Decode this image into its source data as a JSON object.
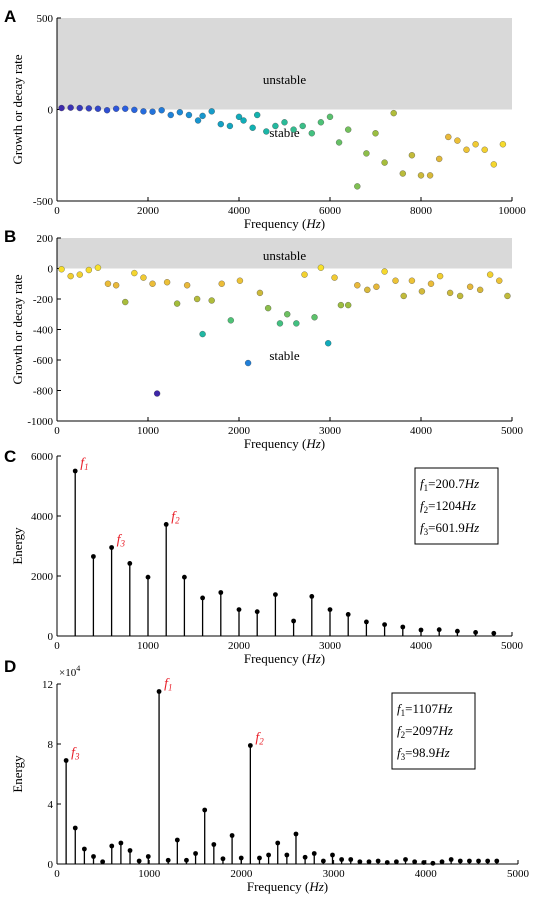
{
  "panels": [
    {
      "letter": "A",
      "chart_data": {
        "type": "scatter",
        "title": "",
        "xlabel": "Frequency",
        "xlabel_unit": "Hz",
        "ylabel": "Growth or decay rate",
        "xlim": [
          0,
          10000
        ],
        "ylim": [
          -500,
          500
        ],
        "xticks": [
          0,
          2000,
          4000,
          6000,
          8000,
          10000
        ],
        "yticks": [
          -500,
          0,
          500
        ],
        "xtick_labels": [
          "0",
          "2000",
          "4000",
          "6000",
          "8000",
          "10000"
        ],
        "ytick_labels": [
          "-500",
          "0",
          "500"
        ],
        "unstable_region": [
          0,
          500
        ],
        "region_labels": [
          "unstable",
          "stable"
        ],
        "grid": false,
        "points": [
          [
            100,
            8
          ],
          [
            300,
            10
          ],
          [
            500,
            8
          ],
          [
            700,
            6
          ],
          [
            900,
            4
          ],
          [
            1100,
            -4
          ],
          [
            1300,
            4
          ],
          [
            1500,
            4
          ],
          [
            1700,
            -2
          ],
          [
            1900,
            -10
          ],
          [
            2100,
            -12
          ],
          [
            2300,
            -4
          ],
          [
            2500,
            -30
          ],
          [
            2700,
            -15
          ],
          [
            2900,
            -30
          ],
          [
            3100,
            -60
          ],
          [
            3200,
            -35
          ],
          [
            3400,
            -10
          ],
          [
            3600,
            -80
          ],
          [
            3800,
            -90
          ],
          [
            4000,
            -40
          ],
          [
            4100,
            -60
          ],
          [
            4300,
            -100
          ],
          [
            4400,
            -30
          ],
          [
            4600,
            -120
          ],
          [
            4800,
            -90
          ],
          [
            5000,
            -70
          ],
          [
            5200,
            -110
          ],
          [
            5400,
            -90
          ],
          [
            5600,
            -130
          ],
          [
            5800,
            -70
          ],
          [
            6000,
            -40
          ],
          [
            6200,
            -180
          ],
          [
            6400,
            -110
          ],
          [
            6600,
            -420
          ],
          [
            6800,
            -240
          ],
          [
            7000,
            -130
          ],
          [
            7200,
            -290
          ],
          [
            7400,
            -20
          ],
          [
            7600,
            -350
          ],
          [
            7800,
            -250
          ],
          [
            8000,
            -360
          ],
          [
            8200,
            -360
          ],
          [
            8400,
            -270
          ],
          [
            8600,
            -150
          ],
          [
            8800,
            -170
          ],
          [
            9000,
            -220
          ],
          [
            9200,
            -190
          ],
          [
            9400,
            -220
          ],
          [
            9600,
            -300
          ],
          [
            9800,
            -190
          ]
        ]
      }
    },
    {
      "letter": "B",
      "chart_data": {
        "type": "scatter",
        "title": "",
        "xlabel": "Frequency",
        "xlabel_unit": "Hz",
        "ylabel": "Growth or decay rate",
        "xlim": [
          0,
          5000
        ],
        "ylim": [
          -1000,
          200
        ],
        "xticks": [
          0,
          1000,
          2000,
          3000,
          4000,
          5000
        ],
        "yticks": [
          -1000,
          -800,
          -600,
          -400,
          -200,
          0,
          200
        ],
        "xtick_labels": [
          "0",
          "1000",
          "2000",
          "3000",
          "4000",
          "5000"
        ],
        "ytick_labels": [
          "-1000",
          "-800",
          "-600",
          "-400",
          "-200",
          "0",
          "200"
        ],
        "unstable_region": [
          0,
          200
        ],
        "region_labels": [
          "unstable",
          "stable"
        ],
        "grid": false,
        "points": [
          [
            50,
            -5
          ],
          [
            150,
            -50
          ],
          [
            250,
            -40
          ],
          [
            350,
            -10
          ],
          [
            450,
            5
          ],
          [
            560,
            -100
          ],
          [
            650,
            -110
          ],
          [
            750,
            -220
          ],
          [
            850,
            -30
          ],
          [
            950,
            -60
          ],
          [
            1050,
            -100
          ],
          [
            1100,
            -820
          ],
          [
            1210,
            -90
          ],
          [
            1320,
            -230
          ],
          [
            1430,
            -110
          ],
          [
            1540,
            -200
          ],
          [
            1600,
            -430
          ],
          [
            1700,
            -210
          ],
          [
            1810,
            -100
          ],
          [
            1910,
            -340
          ],
          [
            2010,
            -80
          ],
          [
            2100,
            -620
          ],
          [
            2230,
            -160
          ],
          [
            2320,
            -260
          ],
          [
            2450,
            -360
          ],
          [
            2530,
            -300
          ],
          [
            2630,
            -360
          ],
          [
            2720,
            -40
          ],
          [
            2830,
            -320
          ],
          [
            2900,
            5
          ],
          [
            2980,
            -490
          ],
          [
            3050,
            -60
          ],
          [
            3120,
            -240
          ],
          [
            3200,
            -240
          ],
          [
            3300,
            -110
          ],
          [
            3410,
            -140
          ],
          [
            3510,
            -120
          ],
          [
            3600,
            -20
          ],
          [
            3720,
            -80
          ],
          [
            3810,
            -180
          ],
          [
            3900,
            -80
          ],
          [
            4010,
            -150
          ],
          [
            4110,
            -100
          ],
          [
            4210,
            -50
          ],
          [
            4320,
            -160
          ],
          [
            4430,
            -180
          ],
          [
            4540,
            -120
          ],
          [
            4650,
            -140
          ],
          [
            4760,
            -40
          ],
          [
            4860,
            -80
          ],
          [
            4950,
            -180
          ]
        ]
      }
    },
    {
      "letter": "C",
      "chart_data": {
        "type": "bar",
        "title": "",
        "xlabel": "Frequency",
        "xlabel_unit": "Hz",
        "ylabel": "Energy",
        "xlim": [
          0,
          5000
        ],
        "ylim": [
          0,
          6000
        ],
        "xticks": [
          0,
          1000,
          2000,
          3000,
          4000,
          5000
        ],
        "yticks": [
          0,
          2000,
          4000,
          6000
        ],
        "xtick_labels": [
          "0",
          "1000",
          "2000",
          "3000",
          "4000",
          "5000"
        ],
        "ytick_labels": [
          "0",
          "2000",
          "4000",
          "6000"
        ],
        "grid": false,
        "x": [
          200,
          400,
          600,
          800,
          1000,
          1200,
          1400,
          1600,
          1800,
          2000,
          2200,
          2400,
          2600,
          2800,
          3000,
          3200,
          3400,
          3600,
          3800,
          4000,
          4200,
          4400,
          4600,
          4800
        ],
        "values": [
          5500,
          2650,
          2950,
          2420,
          1960,
          3720,
          1960,
          1270,
          1450,
          880,
          810,
          1380,
          500,
          1320,
          880,
          720,
          470,
          380,
          300,
          200,
          210,
          160,
          120,
          90
        ],
        "peak_labels": [
          {
            "name": "f",
            "sub": "1",
            "x": 200,
            "y": 5500
          },
          {
            "name": "f",
            "sub": "3",
            "x": 600,
            "y": 2950
          },
          {
            "name": "f",
            "sub": "2",
            "x": 1200,
            "y": 3720
          }
        ],
        "legend_box": [
          {
            "name": "f",
            "sub": "1",
            "value": "=200.7",
            "unit": "Hz"
          },
          {
            "name": "f",
            "sub": "2",
            "value": "=1204",
            "unit": "Hz"
          },
          {
            "name": "f",
            "sub": "3",
            "value": "=601.9",
            "unit": "Hz"
          }
        ]
      }
    },
    {
      "letter": "D",
      "chart_data": {
        "type": "bar",
        "title": "",
        "xlabel": "Frequency",
        "xlabel_unit": "Hz",
        "ylabel": "Energy",
        "y_exponent_base": "×10",
        "y_exponent_power": "4",
        "xlim": [
          0,
          5000
        ],
        "ylim": [
          0,
          12
        ],
        "xticks": [
          0,
          1000,
          2000,
          3000,
          4000,
          5000
        ],
        "yticks": [
          0,
          4,
          8,
          12
        ],
        "xtick_labels": [
          "0",
          "1000",
          "2000",
          "3000",
          "4000",
          "5000"
        ],
        "ytick_labels": [
          "0",
          "4",
          "8",
          "12"
        ],
        "grid": false,
        "x": [
          99,
          198,
          297,
          396,
          495,
          594,
          693,
          792,
          891,
          990,
          1107,
          1206,
          1305,
          1404,
          1503,
          1602,
          1701,
          1800,
          1899,
          1998,
          2097,
          2196,
          2295,
          2394,
          2493,
          2592,
          2691,
          2790,
          2889,
          2988,
          3087,
          3186,
          3285,
          3384,
          3483,
          3582,
          3681,
          3780,
          3879,
          3978,
          4077,
          4176,
          4275,
          4374,
          4473,
          4572,
          4671,
          4770
        ],
        "values": [
          6.9,
          2.4,
          1.0,
          0.5,
          0.15,
          1.2,
          1.4,
          0.9,
          0.2,
          0.5,
          11.5,
          0.25,
          1.6,
          0.25,
          0.7,
          3.6,
          1.3,
          0.35,
          1.9,
          0.4,
          7.9,
          0.4,
          0.6,
          1.4,
          0.6,
          2.0,
          0.45,
          0.7,
          0.2,
          0.6,
          0.3,
          0.3,
          0.15,
          0.15,
          0.2,
          0.1,
          0.15,
          0.3,
          0.15,
          0.1,
          0.05,
          0.15,
          0.3,
          0.2,
          0.2,
          0.2,
          0.2,
          0.2
        ],
        "peak_labels": [
          {
            "name": "f",
            "sub": "3",
            "x": 99,
            "y": 6.9
          },
          {
            "name": "f",
            "sub": "1",
            "x": 1107,
            "y": 11.5
          },
          {
            "name": "f",
            "sub": "2",
            "x": 2097,
            "y": 7.9
          }
        ],
        "legend_box": [
          {
            "name": "f",
            "sub": "1",
            "value": "=1107",
            "unit": "Hz"
          },
          {
            "name": "f",
            "sub": "2",
            "value": "=2097",
            "unit": "Hz"
          },
          {
            "name": "f",
            "sub": "3",
            "value": "=98.9",
            "unit": "Hz"
          }
        ]
      }
    }
  ],
  "colors": {
    "axis": "#000000",
    "unstable_fill": "#d9d9d9",
    "annotation": "#e8202a",
    "stem": "#000000",
    "colormap": [
      "#3e26a8",
      "#2b5be0",
      "#1a8fd6",
      "#0fb2b4",
      "#47c27b",
      "#a3bd3b",
      "#e9b83a",
      "#f8e12a"
    ]
  }
}
